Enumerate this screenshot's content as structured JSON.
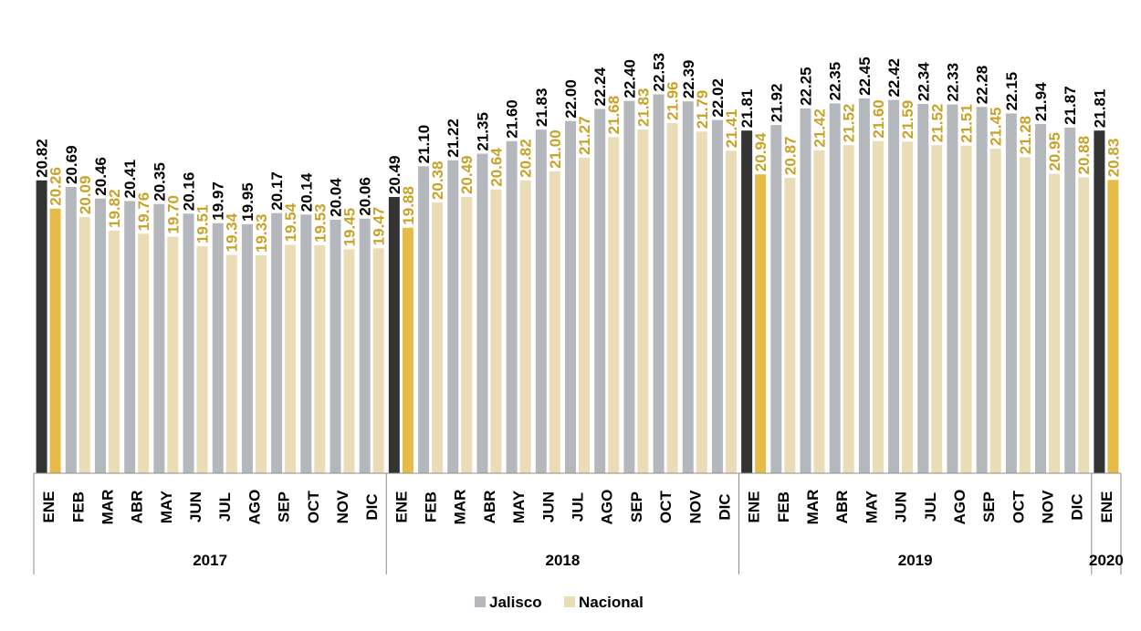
{
  "chart_data": {
    "type": "bar",
    "title": "",
    "xlabel": "",
    "ylabel": "",
    "ylim": [
      15,
      23.1
    ],
    "grid": false,
    "legend_position": "bottom",
    "groups": [
      {
        "label": "2017",
        "months": [
          "ENE",
          "FEB",
          "MAR",
          "ABR",
          "MAY",
          "JUN",
          "JUL",
          "AGO",
          "SEP",
          "OCT",
          "NOV",
          "DIC"
        ]
      },
      {
        "label": "2018",
        "months": [
          "ENE",
          "FEB",
          "MAR",
          "ABR",
          "MAY",
          "JUN",
          "JUL",
          "AGO",
          "SEP",
          "OCT",
          "NOV",
          "DIC"
        ]
      },
      {
        "label": "2019",
        "months": [
          "ENE",
          "FEB",
          "MAR",
          "ABR",
          "MAY",
          "JUN",
          "JUL",
          "AGO",
          "SEP",
          "OCT",
          "NOV",
          "DIC"
        ]
      },
      {
        "label": "2020",
        "months": [
          "ENE"
        ]
      }
    ],
    "series": [
      {
        "name": "Jalisco",
        "legend_color": "#b4b8bd",
        "values": [
          20.82,
          20.69,
          20.46,
          20.41,
          20.35,
          20.16,
          19.97,
          19.95,
          20.17,
          20.14,
          20.04,
          20.06,
          20.49,
          21.1,
          21.22,
          21.35,
          21.6,
          21.83,
          22.0,
          22.24,
          22.4,
          22.53,
          22.39,
          22.02,
          21.81,
          21.92,
          22.25,
          22.35,
          22.45,
          22.42,
          22.34,
          22.33,
          22.28,
          22.15,
          21.94,
          21.87,
          21.81
        ]
      },
      {
        "name": "Nacional",
        "legend_color": "#e9dcb6",
        "values": [
          20.26,
          20.09,
          19.82,
          19.76,
          19.7,
          19.51,
          19.34,
          19.33,
          19.54,
          19.53,
          19.45,
          19.47,
          19.88,
          20.38,
          20.49,
          20.64,
          20.82,
          21.0,
          21.27,
          21.68,
          21.83,
          21.96,
          21.79,
          21.41,
          20.94,
          20.87,
          21.42,
          21.52,
          21.6,
          21.59,
          21.52,
          21.51,
          21.45,
          21.28,
          20.95,
          20.88,
          20.83
        ]
      }
    ],
    "colors": {
      "jalisco_bar": "#b4b8bd",
      "jalisco_highlight": "#333333",
      "nacional_bar": "#e9dcb6",
      "nacional_highlight": "#e6bb47",
      "jalisco_label": "#000000",
      "nacional_label": "#c9a227",
      "axis_line": "#8c8c8c"
    }
  }
}
